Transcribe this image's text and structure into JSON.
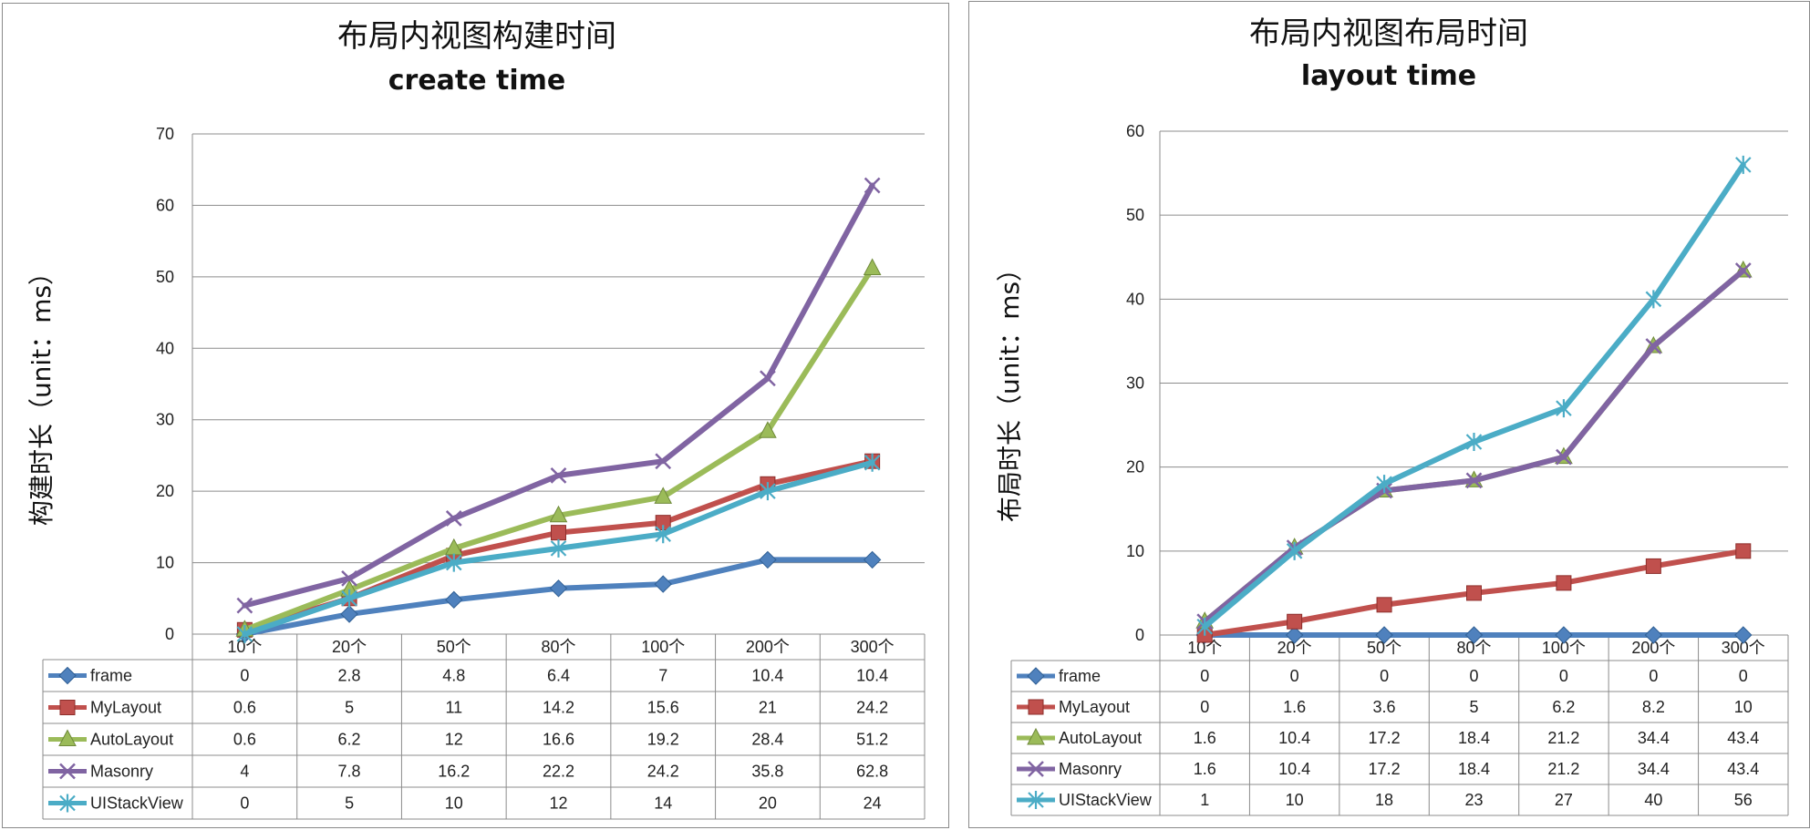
{
  "chart_data": [
    {
      "type": "line",
      "title": "布局内视图构建时间",
      "subtitle": "create time",
      "xlabel": "",
      "ylabel": "构建时长（unit：ms）",
      "ylim": [
        0,
        70
      ],
      "yticks": [
        0,
        10,
        20,
        30,
        40,
        50,
        60,
        70
      ],
      "categories": [
        "10个",
        "20个",
        "50个",
        "80个",
        "100个",
        "200个",
        "300个"
      ],
      "grid": true,
      "legend": "data-table-bottom",
      "series": [
        {
          "name": "frame",
          "color": "#4f81bd",
          "marker": "diamond",
          "values": [
            0,
            2.8,
            4.8,
            6.4,
            7,
            10.4,
            10.4
          ]
        },
        {
          "name": "MyLayout",
          "color": "#c0504d",
          "marker": "square",
          "values": [
            0.6,
            5,
            11,
            14.2,
            15.6,
            21,
            24.2
          ]
        },
        {
          "name": "AutoLayout",
          "color": "#9bbb59",
          "marker": "triangle",
          "values": [
            0.6,
            6.2,
            12,
            16.6,
            19.2,
            28.4,
            51.2
          ]
        },
        {
          "name": "Masonry",
          "color": "#8064a2",
          "marker": "x",
          "values": [
            4,
            7.8,
            16.2,
            22.2,
            24.2,
            35.8,
            62.8
          ]
        },
        {
          "name": "UIStackView",
          "color": "#4bacc6",
          "marker": "star",
          "values": [
            0,
            5,
            10,
            12,
            14,
            20,
            24
          ]
        }
      ],
      "table_text": [
        [
          "0",
          "2.8",
          "4.8",
          "6.4",
          "7",
          "10.4",
          "10.4"
        ],
        [
          "0.6",
          "5",
          "11",
          "14.2",
          "15.6",
          "21",
          "24.2"
        ],
        [
          "0.6",
          "6.2",
          "12",
          "16.6",
          "19.2",
          "28.4",
          "51.2"
        ],
        [
          "4",
          "7.8",
          "16.2",
          "22.2",
          "24.2",
          "35.8",
          "62.8"
        ],
        [
          "0",
          "5",
          "10",
          "12",
          "14",
          "20",
          "24"
        ]
      ]
    },
    {
      "type": "line",
      "title": "布局内视图布局时间",
      "subtitle": "layout time",
      "xlabel": "",
      "ylabel": "布局时长（unit：ms）",
      "ylim": [
        0,
        60
      ],
      "yticks": [
        0,
        10,
        20,
        30,
        40,
        50,
        60
      ],
      "categories": [
        "10个",
        "20个",
        "50个",
        "80个",
        "100个",
        "200个",
        "300个"
      ],
      "grid": true,
      "legend": "data-table-bottom",
      "series": [
        {
          "name": "frame",
          "color": "#4f81bd",
          "marker": "diamond",
          "values": [
            0,
            0,
            0,
            0,
            0,
            0,
            0
          ]
        },
        {
          "name": "MyLayout",
          "color": "#c0504d",
          "marker": "square",
          "values": [
            0,
            1.6,
            3.6,
            5,
            6.2,
            8.2,
            10
          ]
        },
        {
          "name": "AutoLayout",
          "color": "#9bbb59",
          "marker": "triangle",
          "values": [
            1.6,
            10.4,
            17.2,
            18.4,
            21.2,
            34.4,
            43.4
          ]
        },
        {
          "name": "Masonry",
          "color": "#8064a2",
          "marker": "x",
          "values": [
            1.6,
            10.4,
            17.2,
            18.4,
            21.2,
            34.4,
            43.4
          ]
        },
        {
          "name": "UIStackView",
          "color": "#4bacc6",
          "marker": "star",
          "values": [
            1,
            10,
            18,
            23,
            27,
            40,
            56
          ]
        }
      ],
      "table_text": [
        [
          "0",
          "0",
          "0",
          "0",
          "0",
          "0",
          "0"
        ],
        [
          "0",
          "1.6",
          "3.6",
          "5",
          "6.2",
          "8.2",
          "10"
        ],
        [
          "1.6",
          "10.4",
          "17.2",
          "18.4",
          "21.2",
          "34.4",
          "43.4"
        ],
        [
          "1.6",
          "10.4",
          "17.2",
          "18.4",
          "21.2",
          "34.4",
          "43.4"
        ],
        [
          "1",
          "10",
          "18",
          "23",
          "27",
          "40",
          "56"
        ]
      ]
    }
  ]
}
